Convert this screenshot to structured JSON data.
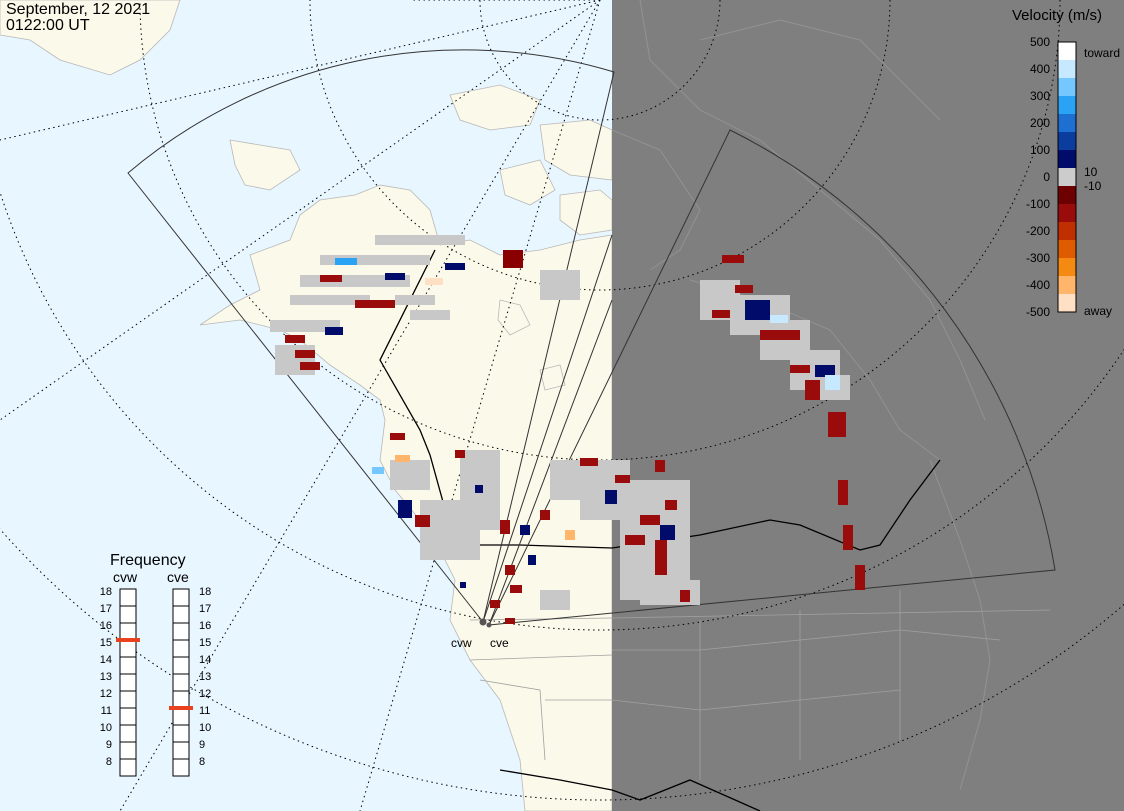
{
  "header": {
    "date": "September, 12 2021",
    "time": "0122:00 UT"
  },
  "colorbar": {
    "title": "Velocity (m/s)",
    "tick_labels": [
      "500",
      "400",
      "300",
      "200",
      "100",
      "0",
      "-100",
      "-200",
      "-300",
      "-400",
      "-500"
    ],
    "inner_labels": [
      "10",
      "-10"
    ],
    "toward_label": "toward",
    "away_label": "away",
    "colors": [
      "#ffffff",
      "#c6e9ff",
      "#75c8ff",
      "#2ba3f4",
      "#1d6fd2",
      "#0b3d9e",
      "#000b6a",
      "#cccccc",
      "#6d0000",
      "#9a0b0b",
      "#c02f00",
      "#df5b00",
      "#f58a12",
      "#ffb66a",
      "#ffe0c4"
    ]
  },
  "frequency": {
    "title": "Frequency",
    "radars": [
      "cvw",
      "cve"
    ],
    "scale": [
      "18",
      "17",
      "16",
      "15",
      "14",
      "13",
      "12",
      "11",
      "10",
      "9",
      "8"
    ],
    "values_mhz": {
      "cvw": 15,
      "cve": 11
    },
    "marker_color": "#e8431e"
  },
  "map": {
    "radar_labels": [
      "cvw",
      "cve"
    ],
    "colors": {
      "ocean": "#e8f6ff",
      "land": "#fbf9ea",
      "night_shade": "#7f7f7f",
      "ground_scatter": "#c8c8c8",
      "borders": "#000000"
    }
  }
}
